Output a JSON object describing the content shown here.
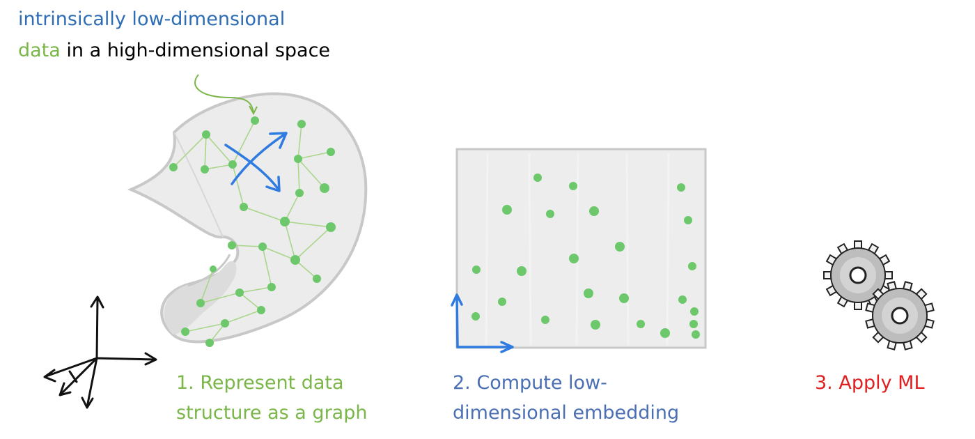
{
  "title": {
    "line1": "intrinsically low-dimensional",
    "line2_highlight": "data",
    "line2_rest": " in a high-dimensional space"
  },
  "steps": [
    {
      "line1": "1. Represent data",
      "line2": "structure as a graph"
    },
    {
      "line1": "2. Compute low-",
      "line2": "dimensional embedding"
    },
    {
      "line1": "3. Apply ML",
      "line2": ""
    }
  ],
  "colors": {
    "blue_text": "#2e6db4",
    "green": "#7ab648",
    "point_green": "#6cc86a",
    "blue_arrow": "#2f7be0",
    "step2_blue": "#4a6fb5",
    "red": "#e02020",
    "gray_shape": "#c8c8c8",
    "surface_fill": "#ececec"
  },
  "icons": [
    "axes-3d-icon",
    "manifold-sheet-icon",
    "embedding-rectangle-icon",
    "gears-icon"
  ]
}
